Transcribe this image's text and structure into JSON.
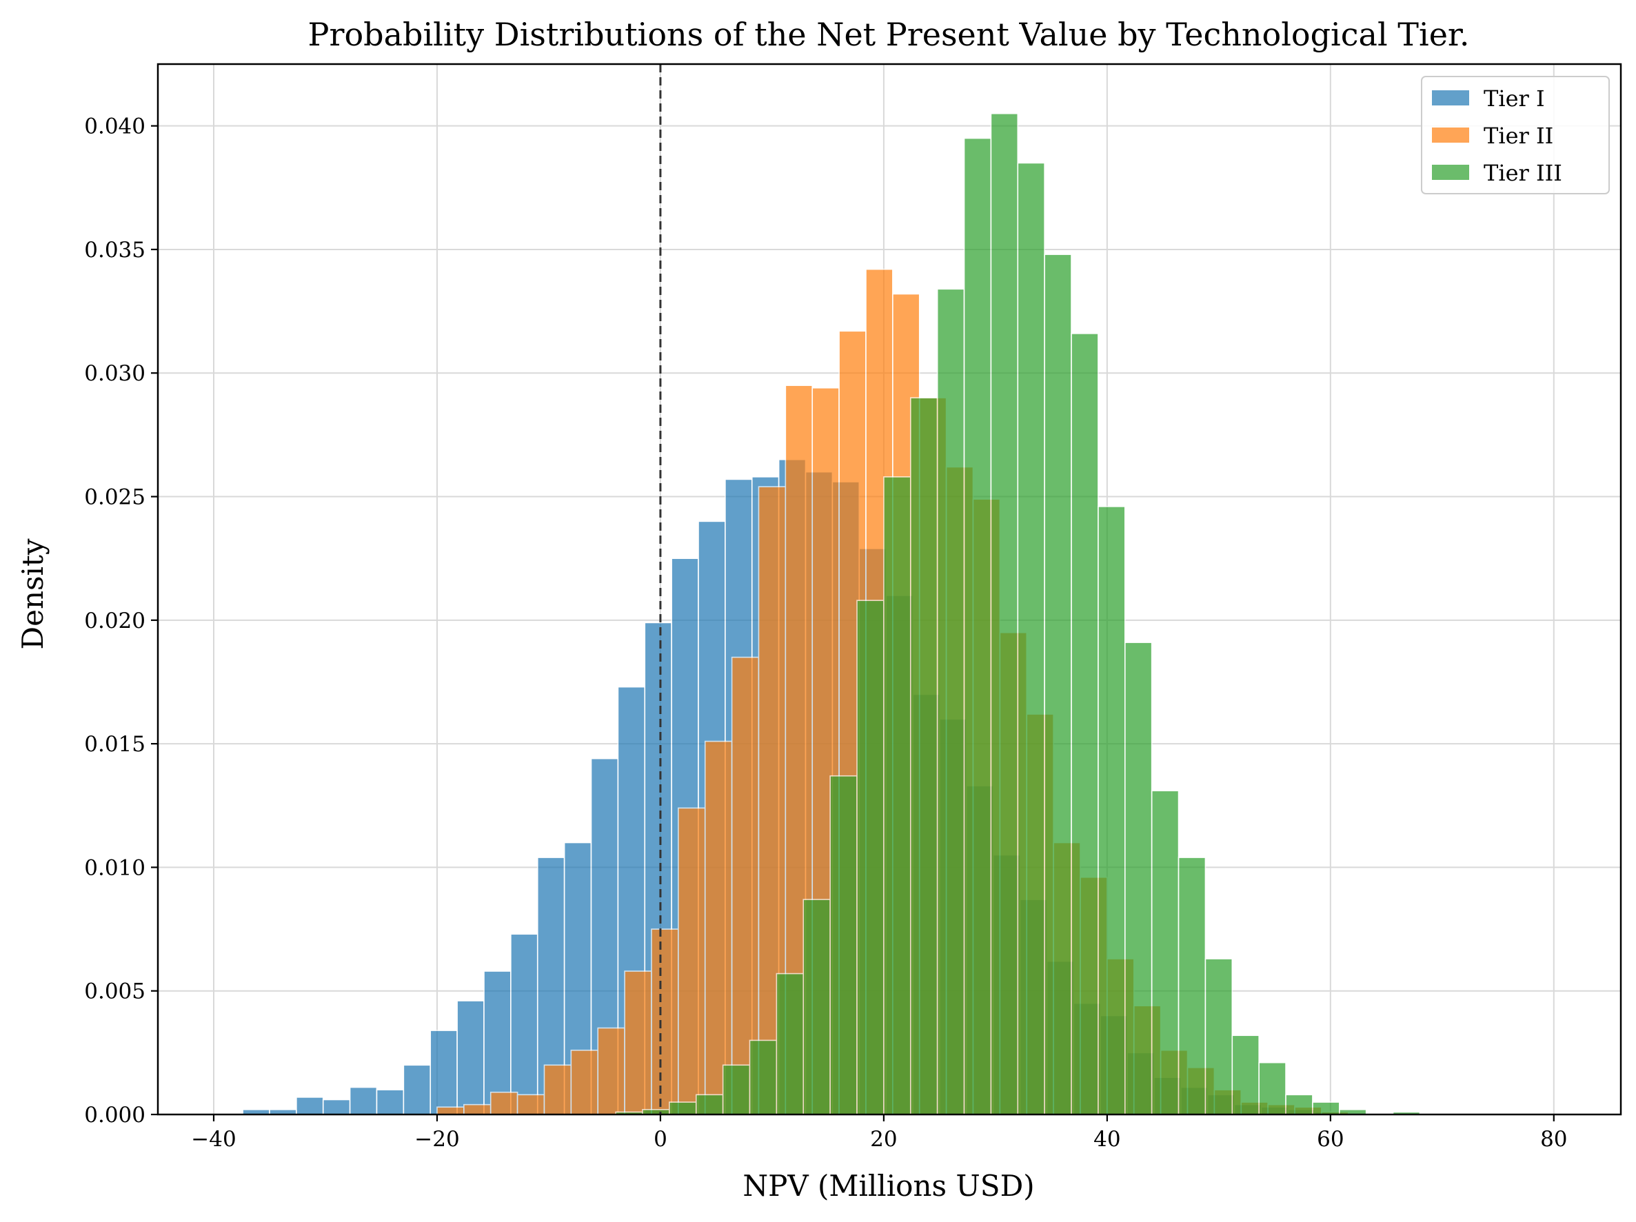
{
  "chart_data": {
    "type": "bar",
    "title": "Probability Distributions of the Net Present Value by Technological Tier.",
    "xlabel": "NPV (Millions USD)",
    "ylabel": "Density",
    "xlim": [
      -45,
      86
    ],
    "ylim": [
      0,
      0.0425
    ],
    "xticks": [
      -40,
      -20,
      0,
      20,
      40,
      60,
      80
    ],
    "xtick_labels": [
      "−40",
      "−20",
      "0",
      "20",
      "40",
      "60",
      "80"
    ],
    "yticks": [
      0.0,
      0.005,
      0.01,
      0.015,
      0.02,
      0.025,
      0.03,
      0.035,
      0.04
    ],
    "ytick_labels": [
      "0.000",
      "0.005",
      "0.010",
      "0.015",
      "0.020",
      "0.025",
      "0.030",
      "0.035",
      "0.040"
    ],
    "grid": true,
    "legend_position": "top-right",
    "reference_line": {
      "x": 0,
      "style": "dashed",
      "color": "#333333"
    },
    "bin_width": 2.4,
    "series": [
      {
        "name": "Tier I",
        "color": "#1f77b4",
        "bins": [
          {
            "x0": -37.4,
            "density": 0.0002
          },
          {
            "x0": -35.0,
            "density": 0.0002
          },
          {
            "x0": -32.6,
            "density": 0.0007
          },
          {
            "x0": -30.2,
            "density": 0.0006
          },
          {
            "x0": -27.8,
            "density": 0.0011
          },
          {
            "x0": -25.4,
            "density": 0.001
          },
          {
            "x0": -23.0,
            "density": 0.002
          },
          {
            "x0": -20.6,
            "density": 0.0034
          },
          {
            "x0": -18.2,
            "density": 0.0046
          },
          {
            "x0": -15.8,
            "density": 0.0058
          },
          {
            "x0": -13.4,
            "density": 0.0073
          },
          {
            "x0": -11.0,
            "density": 0.0104
          },
          {
            "x0": -8.6,
            "density": 0.011
          },
          {
            "x0": -6.2,
            "density": 0.0144
          },
          {
            "x0": -3.8,
            "density": 0.0173
          },
          {
            "x0": -1.4,
            "density": 0.0199
          },
          {
            "x0": 1.0,
            "density": 0.0225
          },
          {
            "x0": 3.4,
            "density": 0.024
          },
          {
            "x0": 5.8,
            "density": 0.0257
          },
          {
            "x0": 8.2,
            "density": 0.0258
          },
          {
            "x0": 10.6,
            "density": 0.0265
          },
          {
            "x0": 13.0,
            "density": 0.026
          },
          {
            "x0": 15.4,
            "density": 0.0256
          },
          {
            "x0": 17.8,
            "density": 0.0229
          },
          {
            "x0": 20.2,
            "density": 0.021
          },
          {
            "x0": 22.6,
            "density": 0.017
          },
          {
            "x0": 25.0,
            "density": 0.016
          },
          {
            "x0": 27.4,
            "density": 0.0133
          },
          {
            "x0": 29.8,
            "density": 0.0105
          },
          {
            "x0": 32.2,
            "density": 0.0087
          },
          {
            "x0": 34.6,
            "density": 0.0062
          },
          {
            "x0": 37.0,
            "density": 0.0045
          },
          {
            "x0": 39.4,
            "density": 0.004
          },
          {
            "x0": 41.8,
            "density": 0.0025
          },
          {
            "x0": 44.2,
            "density": 0.0015
          },
          {
            "x0": 46.6,
            "density": 0.0011
          },
          {
            "x0": 49.0,
            "density": 0.0008
          },
          {
            "x0": 51.4,
            "density": 0.0004
          },
          {
            "x0": 53.8,
            "density": 0.0003
          },
          {
            "x0": 56.2,
            "density": 0.0002
          },
          {
            "x0": 58.6,
            "density": 0.0001
          }
        ]
      },
      {
        "name": "Tier II",
        "color": "#ff7f0e",
        "bins": [
          {
            "x0": -20.0,
            "density": 0.0003
          },
          {
            "x0": -17.6,
            "density": 0.0004
          },
          {
            "x0": -15.2,
            "density": 0.0009
          },
          {
            "x0": -12.8,
            "density": 0.0008
          },
          {
            "x0": -10.4,
            "density": 0.002
          },
          {
            "x0": -8.0,
            "density": 0.0026
          },
          {
            "x0": -5.6,
            "density": 0.0035
          },
          {
            "x0": -3.2,
            "density": 0.0058
          },
          {
            "x0": -0.8,
            "density": 0.0075
          },
          {
            "x0": 1.6,
            "density": 0.0124
          },
          {
            "x0": 4.0,
            "density": 0.0151
          },
          {
            "x0": 6.4,
            "density": 0.0185
          },
          {
            "x0": 8.8,
            "density": 0.0254
          },
          {
            "x0": 11.2,
            "density": 0.0295
          },
          {
            "x0": 13.6,
            "density": 0.0294
          },
          {
            "x0": 16.0,
            "density": 0.0317
          },
          {
            "x0": 18.4,
            "density": 0.0342
          },
          {
            "x0": 20.8,
            "density": 0.0332
          },
          {
            "x0": 23.2,
            "density": 0.029
          },
          {
            "x0": 25.6,
            "density": 0.0262
          },
          {
            "x0": 28.0,
            "density": 0.0249
          },
          {
            "x0": 30.4,
            "density": 0.0195
          },
          {
            "x0": 32.8,
            "density": 0.0162
          },
          {
            "x0": 35.2,
            "density": 0.011
          },
          {
            "x0": 37.6,
            "density": 0.0096
          },
          {
            "x0": 40.0,
            "density": 0.0063
          },
          {
            "x0": 42.4,
            "density": 0.0044
          },
          {
            "x0": 44.8,
            "density": 0.0026
          },
          {
            "x0": 47.2,
            "density": 0.0019
          },
          {
            "x0": 49.6,
            "density": 0.001
          },
          {
            "x0": 52.0,
            "density": 0.0005
          },
          {
            "x0": 54.4,
            "density": 0.0004
          },
          {
            "x0": 56.8,
            "density": 0.0003
          },
          {
            "x0": 59.2,
            "density": 0.0001
          }
        ]
      },
      {
        "name": "Tier III",
        "color": "#2ca02c",
        "bins": [
          {
            "x0": -8.8,
            "density": 0.0
          },
          {
            "x0": -6.4,
            "density": 0.0
          },
          {
            "x0": -4.0,
            "density": 0.0001
          },
          {
            "x0": -1.6,
            "density": 0.0002
          },
          {
            "x0": 0.8,
            "density": 0.0005
          },
          {
            "x0": 3.2,
            "density": 0.0008
          },
          {
            "x0": 5.6,
            "density": 0.002
          },
          {
            "x0": 8.0,
            "density": 0.003
          },
          {
            "x0": 10.4,
            "density": 0.0057
          },
          {
            "x0": 12.8,
            "density": 0.0087
          },
          {
            "x0": 15.2,
            "density": 0.0137
          },
          {
            "x0": 17.6,
            "density": 0.0208
          },
          {
            "x0": 20.0,
            "density": 0.0258
          },
          {
            "x0": 22.4,
            "density": 0.029
          },
          {
            "x0": 24.8,
            "density": 0.0334
          },
          {
            "x0": 27.2,
            "density": 0.0395
          },
          {
            "x0": 29.6,
            "density": 0.0405
          },
          {
            "x0": 32.0,
            "density": 0.0385
          },
          {
            "x0": 34.4,
            "density": 0.0348
          },
          {
            "x0": 36.8,
            "density": 0.0316
          },
          {
            "x0": 39.2,
            "density": 0.0246
          },
          {
            "x0": 41.6,
            "density": 0.0191
          },
          {
            "x0": 44.0,
            "density": 0.0131
          },
          {
            "x0": 46.4,
            "density": 0.0104
          },
          {
            "x0": 48.8,
            "density": 0.0063
          },
          {
            "x0": 51.2,
            "density": 0.0032
          },
          {
            "x0": 53.6,
            "density": 0.0021
          },
          {
            "x0": 56.0,
            "density": 0.0008
          },
          {
            "x0": 58.4,
            "density": 0.0005
          },
          {
            "x0": 60.8,
            "density": 0.0002
          },
          {
            "x0": 63.2,
            "density": 0.0
          },
          {
            "x0": 65.6,
            "density": 0.0001
          }
        ]
      }
    ]
  }
}
